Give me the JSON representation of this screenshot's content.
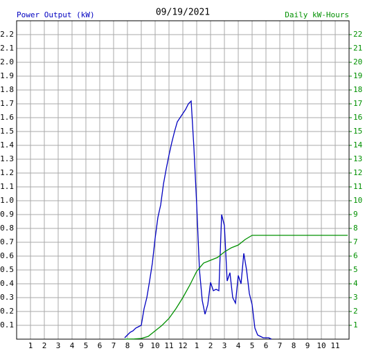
{
  "chart_data": {
    "type": "line",
    "title": "09/19/2021",
    "ylabel": "Power Output (kW)",
    "y2label": "Daily kW-Hours",
    "xlim": [
      0,
      24
    ],
    "xticks": [
      1,
      2,
      3,
      4,
      5,
      6,
      7,
      8,
      9,
      10,
      11,
      {
        "value": 12,
        "label": "12"
      },
      {
        "value": 13,
        "label": "1"
      },
      {
        "value": 14,
        "label": "2"
      },
      {
        "value": 15,
        "label": "3"
      },
      {
        "value": 16,
        "label": "4"
      },
      {
        "value": 17,
        "label": "5"
      },
      {
        "value": 18,
        "label": "6"
      },
      {
        "value": 19,
        "label": "7"
      },
      {
        "value": 20,
        "label": "8"
      },
      {
        "value": 21,
        "label": "9"
      },
      {
        "value": 22,
        "label": "10"
      },
      {
        "value": 23,
        "label": "11"
      }
    ],
    "ylim": [
      0,
      2.3
    ],
    "yticks": [
      0.1,
      0.2,
      0.3,
      0.4,
      0.5,
      0.6,
      0.7,
      0.8,
      0.9,
      {
        "value": 1,
        "label": "1.0"
      },
      1.1,
      1.2,
      1.3,
      1.4,
      1.5,
      1.6,
      1.7,
      1.8,
      1.9,
      {
        "value": 2,
        "label": "2.0"
      },
      2.1,
      2.2
    ],
    "y2lim": [
      0,
      23
    ],
    "y2ticks": [
      1,
      2,
      3,
      4,
      5,
      6,
      7,
      8,
      9,
      10,
      11,
      12,
      13,
      14,
      15,
      16,
      17,
      18,
      19,
      20,
      21,
      22
    ],
    "grid": true,
    "series": [
      {
        "color": "#0000c0",
        "x": [
          7.8,
          8.0,
          8.2,
          8.4,
          8.6,
          8.8,
          9.0,
          9.2,
          9.4,
          9.6,
          9.8,
          10.0,
          10.2,
          10.4,
          10.6,
          10.8,
          11.0,
          11.2,
          11.4,
          11.6,
          11.8,
          12.0,
          12.2,
          12.4,
          12.6,
          12.8,
          13.0,
          13.2,
          13.4,
          13.6,
          13.8,
          14.0,
          14.2,
          14.4,
          14.6,
          14.8,
          15.0,
          15.2,
          15.4,
          15.6,
          15.8,
          16.0,
          16.2,
          16.4,
          16.6,
          16.8,
          17.0,
          17.2,
          17.4,
          17.6,
          17.8,
          18.0,
          18.2,
          18.4
        ],
        "values": [
          0.01,
          0.03,
          0.05,
          0.06,
          0.08,
          0.09,
          0.1,
          0.22,
          0.3,
          0.42,
          0.55,
          0.73,
          0.88,
          0.97,
          1.12,
          1.23,
          1.33,
          1.42,
          1.5,
          1.57,
          1.6,
          1.63,
          1.66,
          1.7,
          1.72,
          1.38,
          0.97,
          0.5,
          0.28,
          0.18,
          0.25,
          0.41,
          0.35,
          0.36,
          0.35,
          0.9,
          0.82,
          0.42,
          0.48,
          0.3,
          0.26,
          0.46,
          0.4,
          0.62,
          0.5,
          0.33,
          0.25,
          0.08,
          0.03,
          0.02,
          0.01,
          0.01,
          0.01,
          0
        ]
      },
      {
        "color": "#009000",
        "axis": "y2",
        "x": [
          7.8,
          8.5,
          9.0,
          9.5,
          10.0,
          10.5,
          11.0,
          11.5,
          12.0,
          12.5,
          13.0,
          13.5,
          14.0,
          14.5,
          15.0,
          15.5,
          16.0,
          16.5,
          17.0,
          17.5,
          23.9
        ],
        "values": [
          0,
          0.02,
          0.05,
          0.2,
          0.6,
          1.0,
          1.5,
          2.2,
          3.0,
          3.9,
          4.9,
          5.5,
          5.7,
          5.9,
          6.3,
          6.6,
          6.8,
          7.2,
          7.5,
          7.5,
          7.5
        ]
      }
    ]
  }
}
